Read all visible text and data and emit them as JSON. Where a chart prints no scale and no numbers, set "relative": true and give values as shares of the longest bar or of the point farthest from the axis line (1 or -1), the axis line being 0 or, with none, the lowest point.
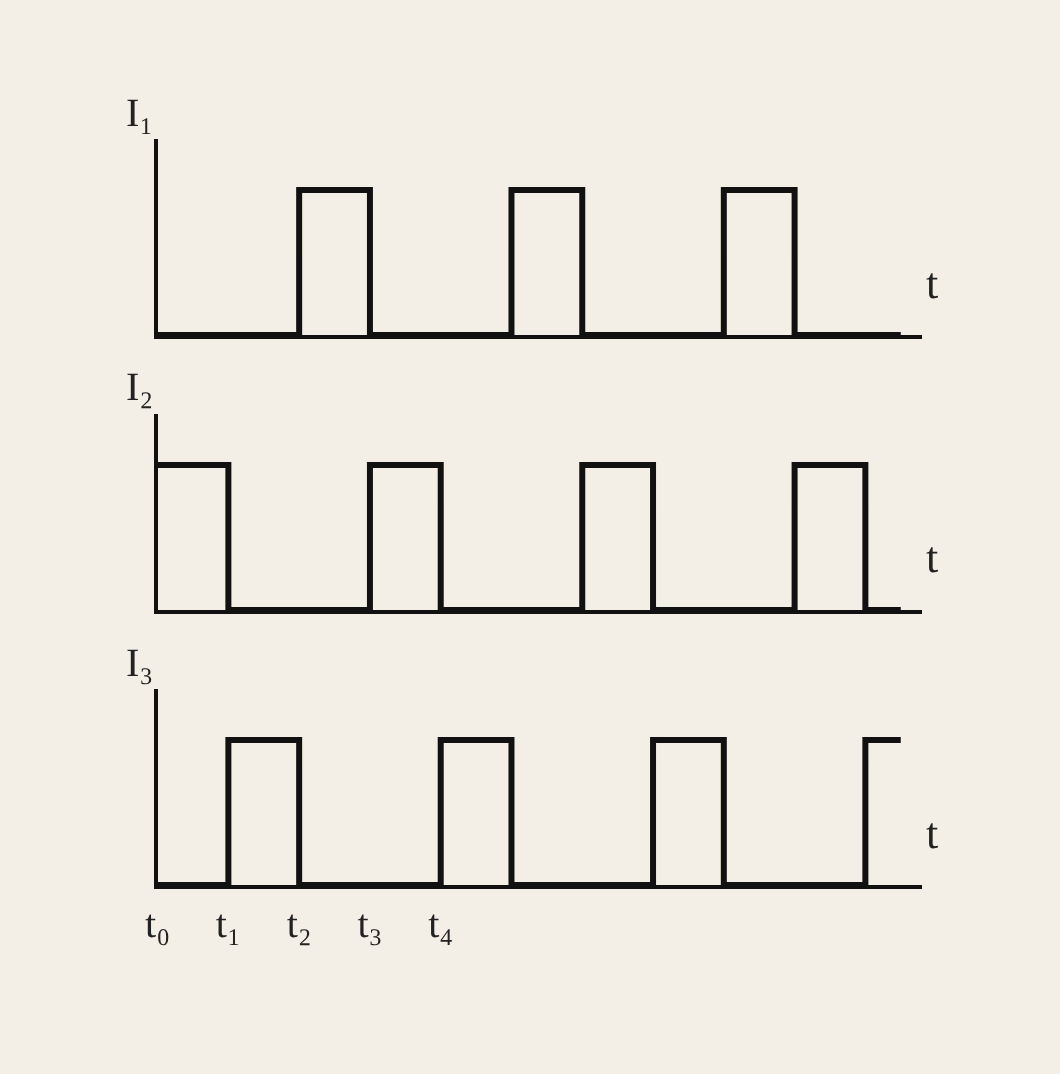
{
  "chart_data": [
    {
      "type": "step",
      "ylabel": "I₁",
      "xlabel": "t",
      "relative": true,
      "tick_labels": false,
      "grid": false,
      "marker": "none",
      "line_style": "solid",
      "categories": [
        null,
        null,
        null,
        null,
        null,
        null,
        null,
        null,
        null,
        null,
        null,
        null,
        null,
        null,
        null,
        null,
        null,
        null,
        null,
        null,
        null,
        null
      ],
      "series": [
        {
          "color": "#111111",
          "values": [
            0,
            0,
            0,
            0,
            1,
            1,
            0,
            0,
            0,
            0,
            1,
            1,
            0,
            0,
            0,
            0,
            1,
            1,
            0,
            0,
            0,
            0
          ]
        }
      ]
    },
    {
      "type": "step",
      "ylabel": "I₂",
      "xlabel": "t",
      "relative": true,
      "tick_labels": false,
      "grid": false,
      "marker": "none",
      "line_style": "solid",
      "categories": [
        null,
        null,
        null,
        null,
        null,
        null,
        null,
        null,
        null,
        null,
        null,
        null,
        null,
        null,
        null,
        null,
        null,
        null,
        null,
        null,
        null,
        null
      ],
      "series": [
        {
          "color": "#111111",
          "values": [
            1,
            1,
            0,
            0,
            0,
            0,
            1,
            1,
            0,
            0,
            0,
            0,
            1,
            1,
            0,
            0,
            0,
            0,
            1,
            1,
            0,
            0
          ]
        }
      ]
    },
    {
      "type": "step",
      "ylabel": "I₃",
      "xlabel": "t",
      "relative": true,
      "tick_labels": "x",
      "grid": false,
      "marker": "none",
      "line_style": "solid",
      "categories": [
        "t₀",
        null,
        "t₁",
        null,
        "t₂",
        null,
        "t₃",
        null,
        "t₄",
        null,
        null,
        null,
        null,
        null,
        null,
        null,
        null,
        null,
        null,
        null,
        null,
        null
      ],
      "series": [
        {
          "color": "#111111",
          "values": [
            0,
            0,
            1,
            1,
            0,
            0,
            0,
            0,
            1,
            1,
            0,
            0,
            0,
            0,
            1,
            1,
            0,
            0,
            0,
            0,
            1,
            1
          ]
        }
      ]
    }
  ]
}
